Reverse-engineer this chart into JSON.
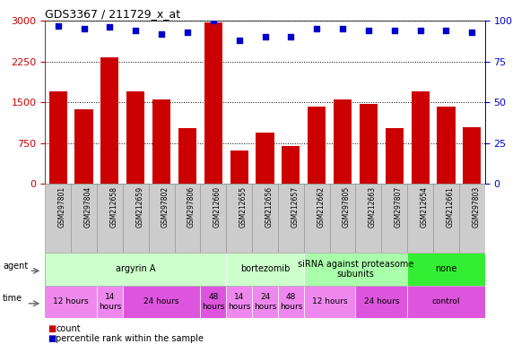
{
  "title": "GDS3367 / 211729_x_at",
  "samples": [
    "GSM297801",
    "GSM297804",
    "GSM212658",
    "GSM212659",
    "GSM297802",
    "GSM297806",
    "GSM212660",
    "GSM212655",
    "GSM212656",
    "GSM212657",
    "GSM212662",
    "GSM297805",
    "GSM212663",
    "GSM297807",
    "GSM212654",
    "GSM212661",
    "GSM297803"
  ],
  "bar_values": [
    1700,
    1380,
    2320,
    1700,
    1560,
    1020,
    2970,
    620,
    950,
    700,
    1420,
    1560,
    1470,
    1020,
    1700,
    1420,
    1050
  ],
  "dot_values": [
    97,
    95,
    96,
    94,
    92,
    93,
    100,
    88,
    90,
    90,
    95,
    95,
    94,
    94,
    94,
    94,
    93
  ],
  "bar_color": "#cc0000",
  "dot_color": "#0000cc",
  "ylim_left": [
    0,
    3000
  ],
  "ylim_right": [
    0,
    100
  ],
  "yticks_left": [
    0,
    750,
    1500,
    2250,
    3000
  ],
  "yticks_right": [
    0,
    25,
    50,
    75,
    100
  ],
  "agent_groups": [
    {
      "label": "argyrin A",
      "start": 0,
      "end": 7,
      "color": "#ccffcc"
    },
    {
      "label": "bortezomib",
      "start": 7,
      "end": 10,
      "color": "#ccffcc"
    },
    {
      "label": "siRNA against proteasome\nsubunits",
      "start": 10,
      "end": 14,
      "color": "#aaffaa"
    },
    {
      "label": "none",
      "start": 14,
      "end": 17,
      "color": "#33ee33"
    }
  ],
  "time_groups": [
    {
      "label": "12 hours",
      "start": 0,
      "end": 2,
      "color": "#ee88ee"
    },
    {
      "label": "14\nhours",
      "start": 2,
      "end": 3,
      "color": "#ee88ee"
    },
    {
      "label": "24 hours",
      "start": 3,
      "end": 6,
      "color": "#dd55dd"
    },
    {
      "label": "48\nhours",
      "start": 6,
      "end": 7,
      "color": "#dd55dd"
    },
    {
      "label": "14\nhours",
      "start": 7,
      "end": 8,
      "color": "#ee88ee"
    },
    {
      "label": "24\nhours",
      "start": 8,
      "end": 9,
      "color": "#ee88ee"
    },
    {
      "label": "48\nhours",
      "start": 9,
      "end": 10,
      "color": "#ee88ee"
    },
    {
      "label": "12 hours",
      "start": 10,
      "end": 12,
      "color": "#ee88ee"
    },
    {
      "label": "24 hours",
      "start": 12,
      "end": 14,
      "color": "#dd55dd"
    },
    {
      "label": "control",
      "start": 14,
      "end": 17,
      "color": "#dd55dd"
    }
  ],
  "legend_items": [
    {
      "label": "count",
      "color": "#cc0000"
    },
    {
      "label": "percentile rank within the sample",
      "color": "#0000cc"
    }
  ],
  "bg_color": "#ffffff",
  "tick_label_color_left": "#cc0000",
  "tick_label_color_right": "#0000cc",
  "sample_bg": "#cccccc",
  "cell_border": "#999999"
}
